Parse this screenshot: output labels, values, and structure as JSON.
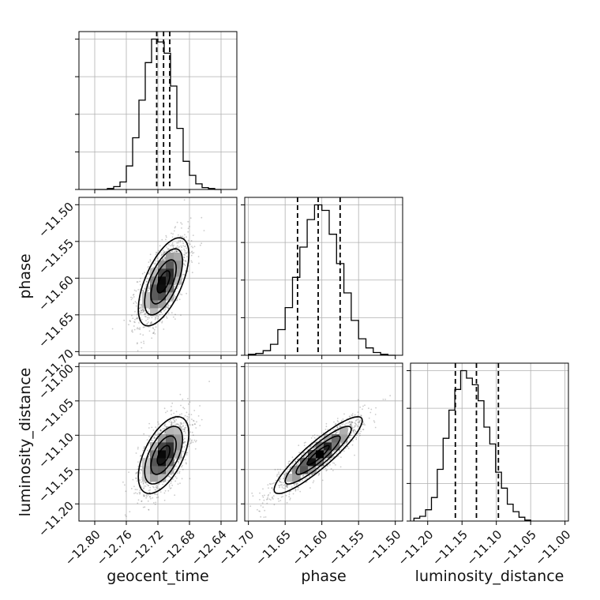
{
  "chart_data": {
    "type": "corner",
    "parameters": [
      "geocent_time",
      "phase",
      "luminosity_distance"
    ],
    "axis_labels": [
      "geocent_time",
      "phase",
      "luminosity_distance"
    ],
    "ranges": [
      [
        -12.82,
        -12.62
      ],
      [
        -11.705,
        -11.49
      ],
      [
        -11.225,
        -10.995
      ]
    ],
    "x_ticks": [
      {
        "values": [
          -12.8,
          -12.76,
          -12.72,
          -12.68,
          -12.64
        ],
        "labels": [
          "−12.80",
          "−12.76",
          "−12.72",
          "−12.68",
          "−12.64"
        ]
      },
      {
        "values": [
          -11.7,
          -11.65,
          -11.6,
          -11.55,
          -11.5
        ],
        "labels": [
          "−11.70",
          "−11.65",
          "−11.60",
          "−11.55",
          "−11.50"
        ]
      },
      {
        "values": [
          -11.2,
          -11.15,
          -11.1,
          -11.05,
          -11.0
        ],
        "labels": [
          "−11.20",
          "−11.15",
          "−11.10",
          "−11.05",
          "−11.00"
        ]
      }
    ],
    "y_ticks": [
      null,
      {
        "values": [
          -11.7,
          -11.65,
          -11.6,
          -11.55,
          -11.5
        ],
        "labels": [
          "−11.70",
          "−11.65",
          "−11.60",
          "−11.55",
          "−11.50"
        ]
      },
      {
        "values": [
          -11.2,
          -11.15,
          -11.1,
          -11.05,
          -11.0
        ],
        "labels": [
          "−11.20",
          "−11.15",
          "−11.10",
          "−11.05",
          "−11.00"
        ]
      }
    ],
    "histograms": [
      {
        "param": "geocent_time",
        "bin_edges": [
          -12.8,
          -12.792,
          -12.784,
          -12.776,
          -12.768,
          -12.76,
          -12.752,
          -12.744,
          -12.736,
          -12.728,
          -12.72,
          -12.712,
          -12.704,
          -12.696,
          -12.688,
          -12.68,
          -12.672,
          -12.664,
          -12.656,
          -12.648,
          -12.64
        ],
        "counts": [
          0,
          0,
          1,
          3,
          8,
          25,
          55,
          95,
          135,
          160,
          157,
          145,
          110,
          65,
          30,
          15,
          6,
          2,
          1,
          0
        ],
        "quantiles": [
          -12.7215,
          -12.7128,
          -12.705
        ]
      },
      {
        "param": "phase",
        "bin_edges": [
          -11.7,
          -11.69,
          -11.68,
          -11.67,
          -11.66,
          -11.65,
          -11.64,
          -11.63,
          -11.62,
          -11.61,
          -11.6,
          -11.59,
          -11.58,
          -11.57,
          -11.56,
          -11.55,
          -11.54,
          -11.53,
          -11.52,
          -11.51,
          -11.5
        ],
        "counts": [
          1,
          2,
          5,
          12,
          28,
          52,
          85,
          118,
          148,
          164,
          158,
          132,
          100,
          68,
          38,
          18,
          8,
          3,
          1,
          0
        ],
        "quantiles": [
          -11.6331,
          -11.605,
          -11.5751
        ]
      },
      {
        "param": "luminosity_distance",
        "bin_edges": [
          -11.22,
          -11.2115,
          -11.203,
          -11.1945,
          -11.186,
          -11.1775,
          -11.169,
          -11.1605,
          -11.152,
          -11.1435,
          -11.135,
          -11.1265,
          -11.118,
          -11.1095,
          -11.101,
          -11.0925,
          -11.084,
          -11.0755,
          -11.067,
          -11.0585,
          -11.05
        ],
        "counts": [
          3,
          5,
          12,
          25,
          55,
          88,
          118,
          140,
          160,
          152,
          145,
          128,
          100,
          82,
          52,
          35,
          18,
          10,
          4,
          1
        ],
        "quantiles": [
          -11.1597,
          -11.129,
          -11.097
        ]
      }
    ],
    "density_2d": [
      {
        "x": "geocent_time",
        "y": "phase",
        "mean": [
          -12.7128,
          -11.605
        ],
        "sd": [
          0.016,
          0.03
        ],
        "correlation": 0.62
      },
      {
        "x": "geocent_time",
        "y": "luminosity_distance",
        "mean": [
          -12.7128,
          -11.129
        ],
        "sd": [
          0.016,
          0.028
        ],
        "correlation": 0.56
      },
      {
        "x": "phase",
        "y": "luminosity_distance",
        "mean": [
          -11.605,
          -11.129
        ],
        "sd": [
          0.03,
          0.028
        ],
        "correlation": 0.9
      }
    ],
    "contour_levels_sigma": [
      0.5,
      1.0,
      1.5,
      2.0
    ],
    "grid": true,
    "legend": "none"
  }
}
